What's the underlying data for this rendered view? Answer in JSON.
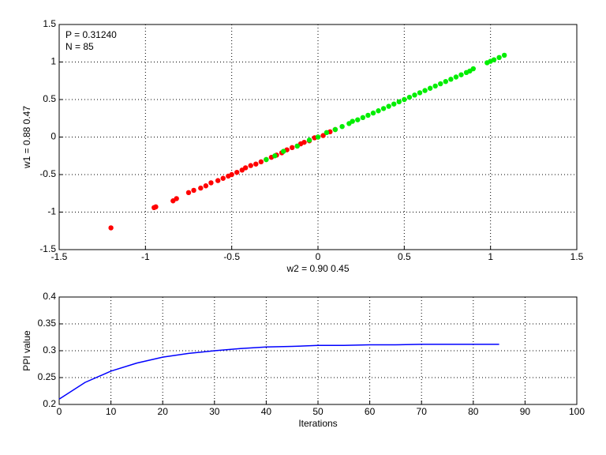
{
  "chart_data": [
    {
      "type": "scatter",
      "xlabel": "w2 = 0.90  0.45",
      "ylabel": "w1 = 0.88  0.47",
      "annotations": [
        "P = 0.31240",
        "N = 85"
      ],
      "xlim": [
        -1.5,
        1.5
      ],
      "ylim": [
        -1.5,
        1.5
      ],
      "xticks": [
        -1.5,
        -1,
        -0.5,
        0,
        0.5,
        1,
        1.5
      ],
      "yticks": [
        -1.5,
        -1,
        -0.5,
        0,
        0.5,
        1,
        1.5
      ],
      "grid": true,
      "series": [
        {
          "color": "#ff0000",
          "x": [
            -1.2,
            -0.95,
            -0.94,
            -0.84,
            -0.82,
            -0.75,
            -0.72,
            -0.68,
            -0.65,
            -0.62,
            -0.58,
            -0.55,
            -0.52,
            -0.5,
            -0.47,
            -0.44,
            -0.42,
            -0.39,
            -0.36,
            -0.33,
            -0.3,
            -0.27,
            -0.24,
            -0.21,
            -0.18,
            -0.15,
            -0.12,
            -0.1,
            -0.08,
            -0.05,
            -0.02,
            0.0,
            0.03,
            0.07,
            0.1
          ],
          "y": [
            -1.21,
            -0.94,
            -0.93,
            -0.85,
            -0.82,
            -0.74,
            -0.71,
            -0.68,
            -0.65,
            -0.61,
            -0.58,
            -0.55,
            -0.52,
            -0.5,
            -0.47,
            -0.44,
            -0.41,
            -0.38,
            -0.36,
            -0.33,
            -0.3,
            -0.27,
            -0.24,
            -0.21,
            -0.17,
            -0.14,
            -0.12,
            -0.09,
            -0.07,
            -0.05,
            -0.01,
            0.0,
            0.02,
            0.07,
            0.1
          ]
        },
        {
          "color": "#00ee00",
          "x": [
            -0.3,
            -0.25,
            -0.2,
            -0.12,
            -0.05,
            0.0,
            0.05,
            0.1,
            0.14,
            0.18,
            0.2,
            0.23,
            0.26,
            0.29,
            0.32,
            0.35,
            0.38,
            0.41,
            0.44,
            0.47,
            0.5,
            0.53,
            0.56,
            0.59,
            0.62,
            0.65,
            0.68,
            0.71,
            0.74,
            0.77,
            0.8,
            0.83,
            0.86,
            0.88,
            0.9,
            0.98,
            1.0,
            1.02,
            1.05,
            1.08
          ],
          "y": [
            -0.3,
            -0.25,
            -0.19,
            -0.12,
            -0.04,
            0.0,
            0.06,
            0.1,
            0.14,
            0.18,
            0.21,
            0.23,
            0.26,
            0.29,
            0.32,
            0.35,
            0.38,
            0.41,
            0.44,
            0.47,
            0.5,
            0.53,
            0.56,
            0.59,
            0.62,
            0.65,
            0.68,
            0.71,
            0.74,
            0.77,
            0.8,
            0.83,
            0.86,
            0.88,
            0.91,
            0.99,
            1.01,
            1.03,
            1.06,
            1.09
          ]
        }
      ]
    },
    {
      "type": "line",
      "xlabel": "Iterations",
      "ylabel": "PPI value",
      "xlim": [
        0,
        100
      ],
      "ylim": [
        0.2,
        0.4
      ],
      "xticks": [
        0,
        10,
        20,
        30,
        40,
        50,
        60,
        70,
        80,
        90,
        100
      ],
      "yticks": [
        0.2,
        0.25,
        0.3,
        0.35,
        0.4
      ],
      "grid": true,
      "color": "#0000ff",
      "x": [
        0,
        5,
        10,
        15,
        20,
        25,
        30,
        35,
        40,
        45,
        50,
        55,
        60,
        65,
        70,
        75,
        80,
        85
      ],
      "values": [
        0.21,
        0.241,
        0.262,
        0.277,
        0.288,
        0.295,
        0.3,
        0.304,
        0.307,
        0.308,
        0.31,
        0.31,
        0.311,
        0.311,
        0.312,
        0.312,
        0.312,
        0.312
      ]
    }
  ]
}
